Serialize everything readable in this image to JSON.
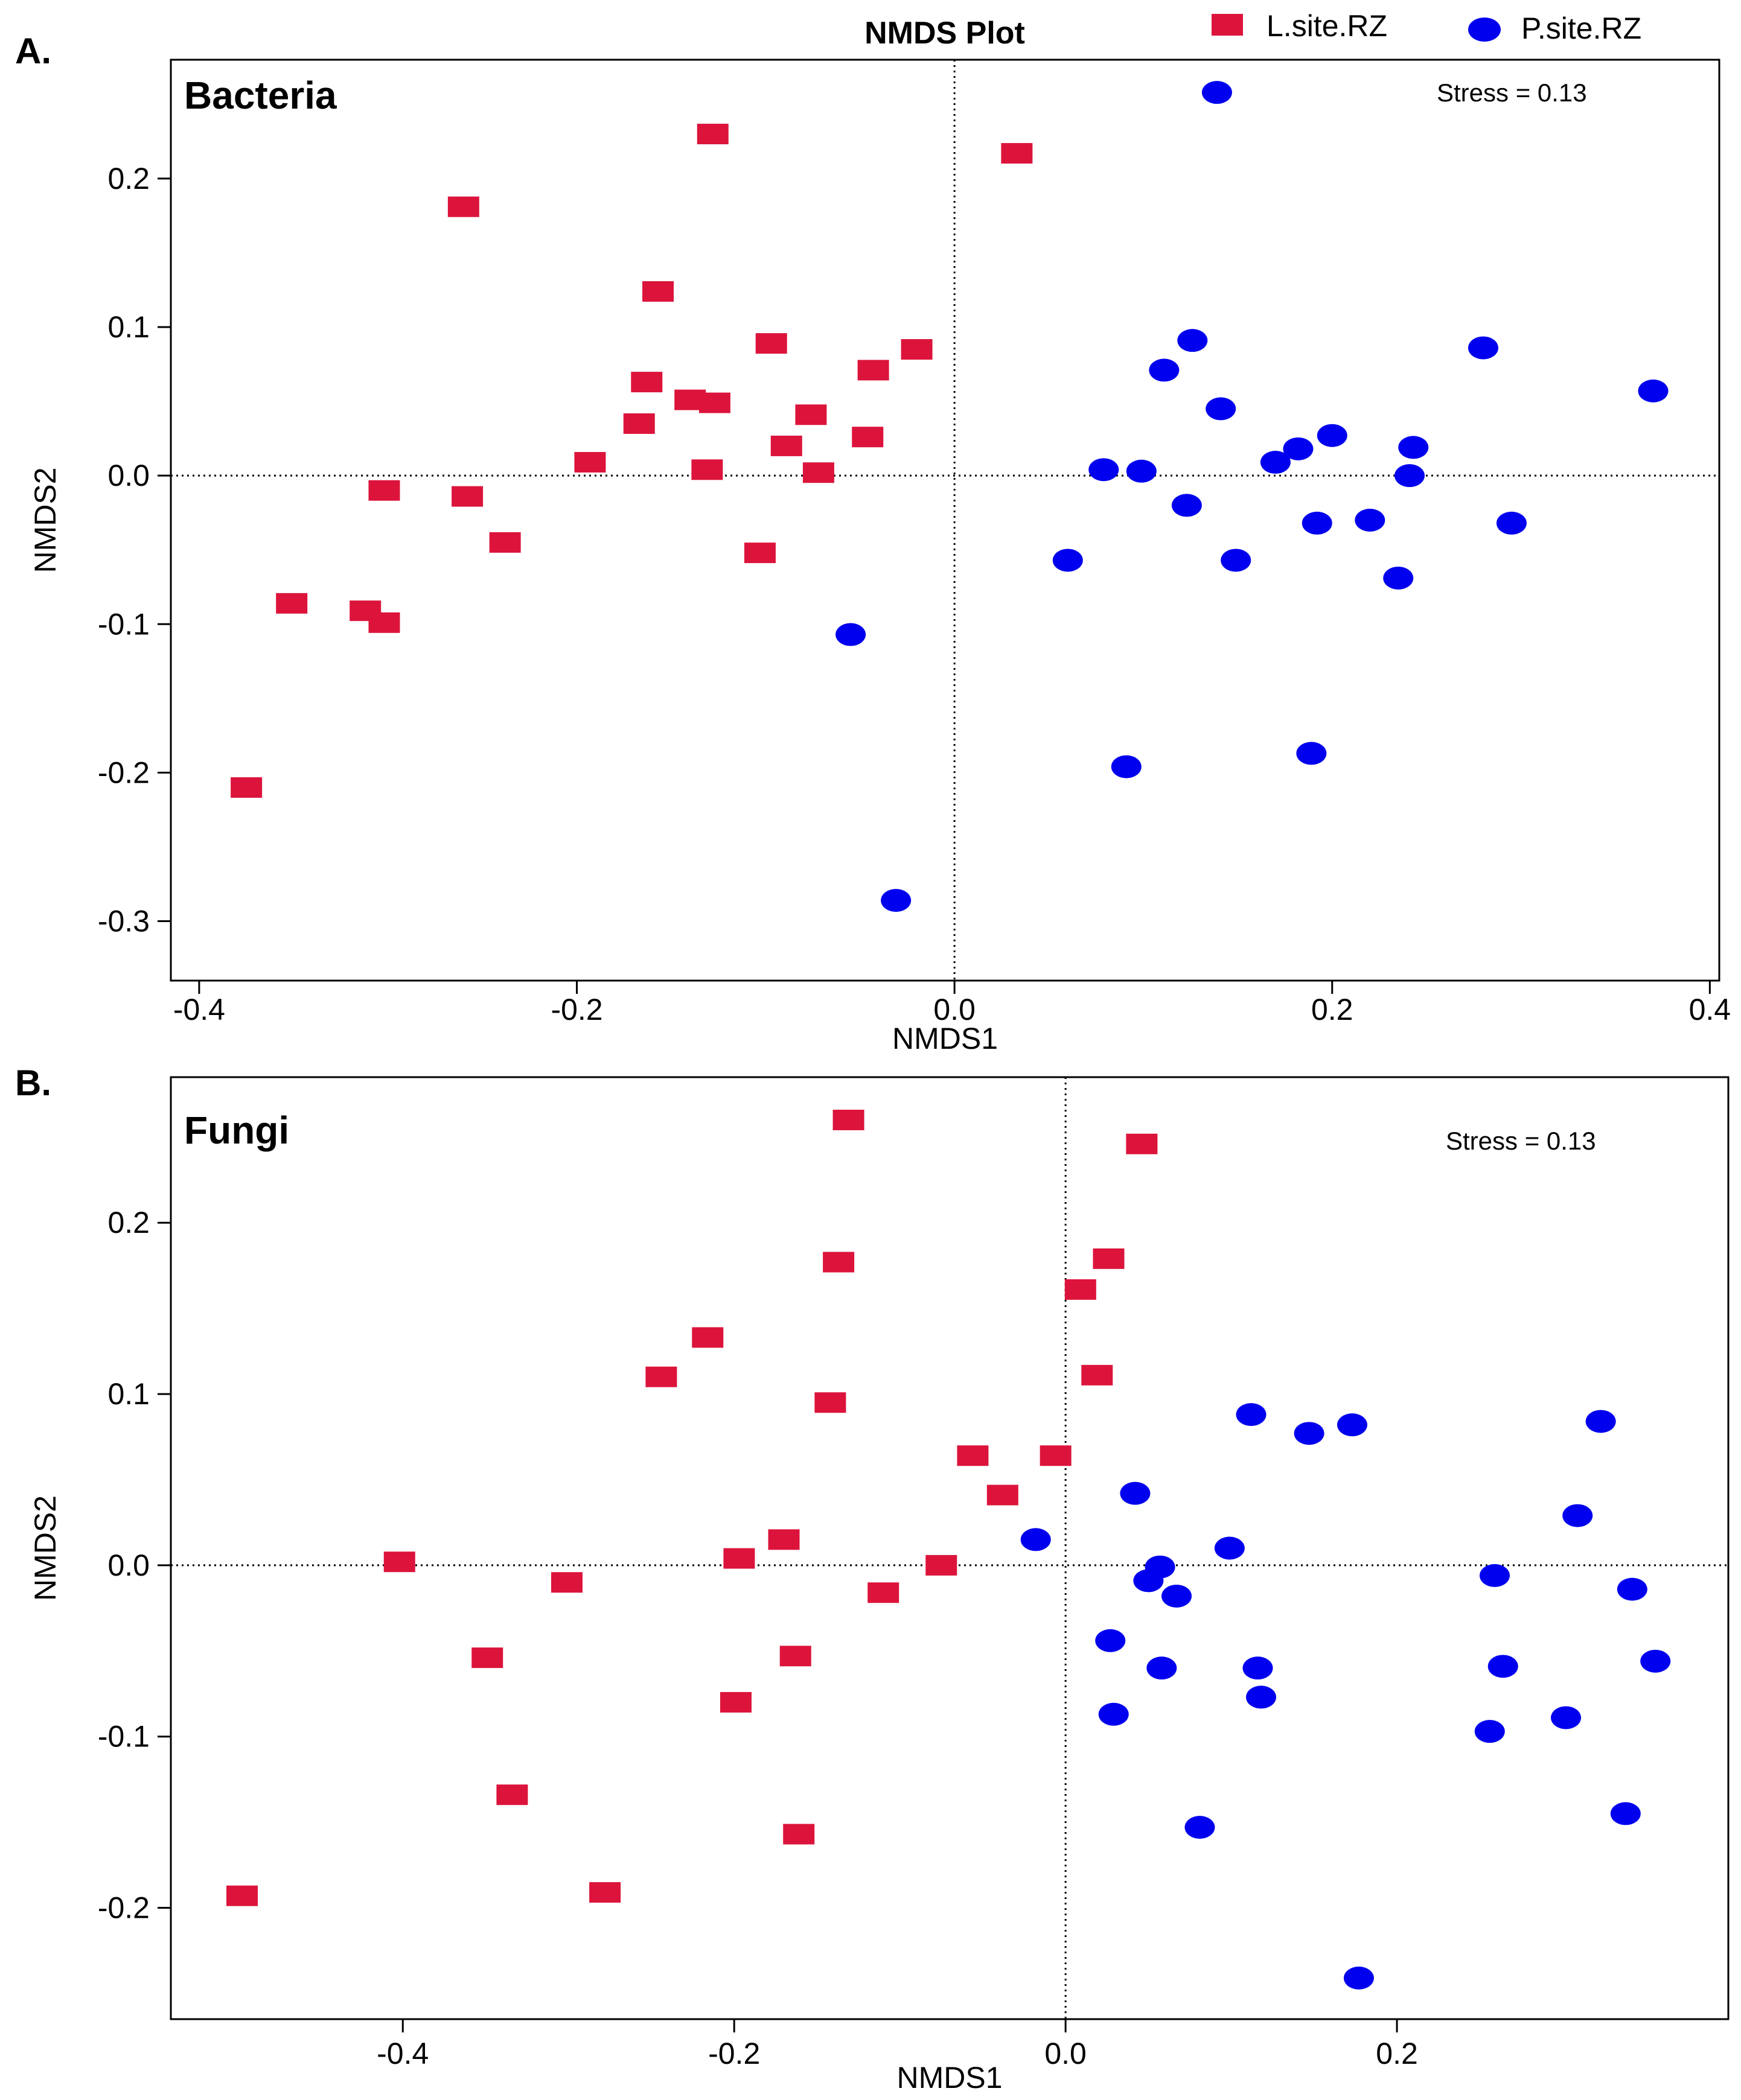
{
  "figure": {
    "title": "NMDS Plot",
    "legend": [
      {
        "label": "L.site.RZ",
        "marker": "square",
        "color": "#DC143C"
      },
      {
        "label": "P.site.RZ",
        "marker": "circle",
        "color": "#0000EE"
      }
    ],
    "legend_position": "top-right"
  },
  "chart_data": [
    {
      "type": "scatter",
      "panel_label": "A.",
      "title": "Bacteria",
      "annotation": "Stress = 0.13",
      "xlabel": "NMDS1",
      "ylabel": "NMDS2",
      "xlim": [
        -0.415,
        0.405
      ],
      "ylim": [
        -0.34,
        0.28
      ],
      "xticks": [
        -0.4,
        -0.2,
        0.0,
        0.2,
        0.4
      ],
      "xtick_labels": [
        "-0.4",
        "-0.2",
        "0.0",
        "0.2",
        "0.4"
      ],
      "yticks": [
        -0.3,
        -0.2,
        -0.1,
        0.0,
        0.1,
        0.2
      ],
      "ytick_labels": [
        "-0.3",
        "-0.2",
        "-0.1",
        "0.0",
        "0.1",
        "0.2"
      ],
      "reference_lines": {
        "x": 0,
        "y": 0
      },
      "grid": false,
      "series": [
        {
          "name": "L.site.RZ",
          "color": "#DC143C",
          "marker": "square",
          "points": [
            [
              -0.375,
              -0.21
            ],
            [
              -0.351,
              -0.086
            ],
            [
              -0.312,
              -0.091
            ],
            [
              -0.302,
              -0.099
            ],
            [
              -0.302,
              -0.01
            ],
            [
              -0.26,
              0.181
            ],
            [
              -0.258,
              -0.014
            ],
            [
              -0.238,
              -0.045
            ],
            [
              -0.193,
              0.009
            ],
            [
              -0.167,
              0.035
            ],
            [
              -0.163,
              0.063
            ],
            [
              -0.157,
              0.124
            ],
            [
              -0.14,
              0.051
            ],
            [
              -0.128,
              0.23
            ],
            [
              -0.127,
              0.049
            ],
            [
              -0.131,
              0.004
            ],
            [
              -0.103,
              -0.052
            ],
            [
              -0.097,
              0.089
            ],
            [
              -0.089,
              0.02
            ],
            [
              -0.076,
              0.041
            ],
            [
              -0.072,
              0.002
            ],
            [
              -0.046,
              0.026
            ],
            [
              -0.043,
              0.071
            ],
            [
              -0.02,
              0.085
            ],
            [
              0.033,
              0.217
            ]
          ]
        },
        {
          "name": "P.site.RZ",
          "color": "#0000EE",
          "marker": "circle",
          "points": [
            [
              -0.055,
              -0.107
            ],
            [
              -0.031,
              -0.286
            ],
            [
              0.06,
              -0.057
            ],
            [
              0.079,
              0.004
            ],
            [
              0.091,
              -0.196
            ],
            [
              0.099,
              0.003
            ],
            [
              0.111,
              0.071
            ],
            [
              0.123,
              -0.02
            ],
            [
              0.126,
              0.091
            ],
            [
              0.139,
              0.258
            ],
            [
              0.141,
              0.045
            ],
            [
              0.149,
              -0.057
            ],
            [
              0.17,
              0.009
            ],
            [
              0.182,
              0.018
            ],
            [
              0.189,
              -0.187
            ],
            [
              0.192,
              -0.032
            ],
            [
              0.2,
              0.027
            ],
            [
              0.22,
              -0.03
            ],
            [
              0.235,
              -0.069
            ],
            [
              0.241,
              0.0
            ],
            [
              0.243,
              0.019
            ],
            [
              0.28,
              0.086
            ],
            [
              0.295,
              -0.032
            ],
            [
              0.37,
              0.057
            ]
          ]
        }
      ]
    },
    {
      "type": "scatter",
      "panel_label": "B.",
      "title": "Fungi",
      "annotation": "Stress = 0.13",
      "xlabel": "NMDS1",
      "ylabel": "NMDS2",
      "xlim": [
        -0.54,
        0.4
      ],
      "ylim": [
        -0.265,
        0.285
      ],
      "xticks": [
        -0.4,
        -0.2,
        0.0,
        0.2
      ],
      "xtick_labels": [
        "-0.4",
        "-0.2",
        "0.0",
        "0.2"
      ],
      "yticks": [
        -0.2,
        -0.1,
        0.0,
        0.1,
        0.2
      ],
      "ytick_labels": [
        "-0.2",
        "-0.1",
        "0.0",
        "0.1",
        "0.2"
      ],
      "reference_lines": {
        "x": 0,
        "y": 0
      },
      "grid": false,
      "series": [
        {
          "name": "L.site.RZ",
          "color": "#DC143C",
          "marker": "square",
          "points": [
            [
              -0.497,
              -0.193
            ],
            [
              -0.402,
              0.002
            ],
            [
              -0.349,
              -0.054
            ],
            [
              -0.334,
              -0.134
            ],
            [
              -0.301,
              -0.01
            ],
            [
              -0.278,
              -0.191
            ],
            [
              -0.244,
              0.11
            ],
            [
              -0.216,
              0.133
            ],
            [
              -0.197,
              0.004
            ],
            [
              -0.199,
              -0.08
            ],
            [
              -0.17,
              0.015
            ],
            [
              -0.163,
              -0.053
            ],
            [
              -0.161,
              -0.157
            ],
            [
              -0.142,
              0.095
            ],
            [
              -0.137,
              0.177
            ],
            [
              -0.131,
              0.26
            ],
            [
              -0.11,
              -0.016
            ],
            [
              -0.075,
              0.0
            ],
            [
              -0.056,
              0.064
            ],
            [
              -0.038,
              0.041
            ],
            [
              -0.006,
              0.064
            ],
            [
              0.009,
              0.161
            ],
            [
              0.019,
              0.111
            ],
            [
              0.026,
              0.179
            ],
            [
              0.046,
              0.246
            ]
          ]
        },
        {
          "name": "P.site.RZ",
          "color": "#0000EE",
          "marker": "circle",
          "points": [
            [
              -0.018,
              0.015
            ],
            [
              0.027,
              -0.044
            ],
            [
              0.029,
              -0.087
            ],
            [
              0.042,
              0.042
            ],
            [
              0.05,
              -0.009
            ],
            [
              0.057,
              -0.001
            ],
            [
              0.058,
              -0.06
            ],
            [
              0.067,
              -0.018
            ],
            [
              0.081,
              -0.153
            ],
            [
              0.099,
              0.01
            ],
            [
              0.112,
              0.088
            ],
            [
              0.116,
              -0.06
            ],
            [
              0.118,
              -0.077
            ],
            [
              0.147,
              0.077
            ],
            [
              0.173,
              0.082
            ],
            [
              0.177,
              -0.241
            ],
            [
              0.256,
              -0.097
            ],
            [
              0.259,
              -0.006
            ],
            [
              0.264,
              -0.059
            ],
            [
              0.302,
              -0.089
            ],
            [
              0.309,
              0.029
            ],
            [
              0.323,
              0.084
            ],
            [
              0.338,
              -0.145
            ],
            [
              0.342,
              -0.014
            ],
            [
              0.356,
              -0.056
            ]
          ]
        }
      ]
    }
  ]
}
